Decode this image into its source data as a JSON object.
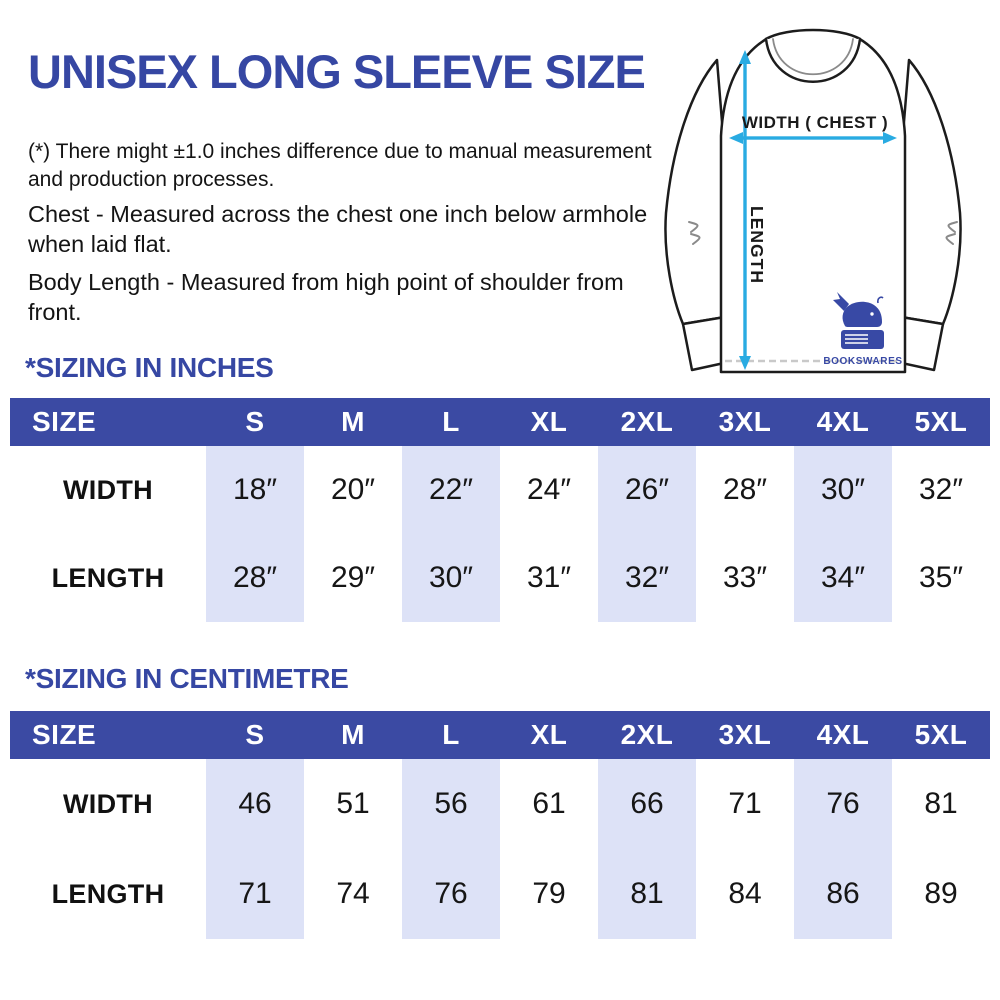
{
  "header": {
    "title": "UNISEX LONG SLEEVE SIZE"
  },
  "notes": {
    "disclaimer": "(*) There might ±1.0 inches difference due to manual measurement and production processes.",
    "chest": "Chest - Measured across the chest one inch below armhole when laid flat.",
    "body_length": "Body Length - Measured from high point of shoulder from front."
  },
  "diagram": {
    "width_label": "WIDTH ( CHEST )",
    "length_label": "LENGTH",
    "brand_logo_text": "BOOKSWARES",
    "arrow_color": "#29abe2",
    "outline_color": "#1c1c1c"
  },
  "colors": {
    "brand_blue": "#3647a3",
    "table_header_bg": "#3b4aa3",
    "highlight_band": "#dde2f7",
    "arrow_cyan": "#29abe2"
  },
  "tables": [
    {
      "heading": "*SIZING IN INCHES",
      "columns": [
        "SIZE",
        "S",
        "M",
        "L",
        "XL",
        "2XL",
        "3XL",
        "4XL",
        "5XL"
      ],
      "highlighted_columns": [
        "S",
        "L",
        "2XL",
        "4XL"
      ],
      "rows": [
        {
          "label": "WIDTH",
          "values": [
            "18″",
            "20″",
            "22″",
            "24″",
            "26″",
            "28″",
            "30″",
            "32″"
          ]
        },
        {
          "label": "LENGTH",
          "values": [
            "28″",
            "29″",
            "30″",
            "31″",
            "32″",
            "33″",
            "34″",
            "35″"
          ]
        }
      ]
    },
    {
      "heading": "*SIZING IN CENTIMETRE",
      "columns": [
        "SIZE",
        "S",
        "M",
        "L",
        "XL",
        "2XL",
        "3XL",
        "4XL",
        "5XL"
      ],
      "highlighted_columns": [
        "S",
        "L",
        "2XL",
        "4XL"
      ],
      "rows": [
        {
          "label": "WIDTH",
          "values": [
            "46",
            "51",
            "56",
            "61",
            "66",
            "71",
            "76",
            "81"
          ]
        },
        {
          "label": "LENGTH",
          "values": [
            "71",
            "74",
            "76",
            "79",
            "81",
            "84",
            "86",
            "89"
          ]
        }
      ]
    }
  ]
}
